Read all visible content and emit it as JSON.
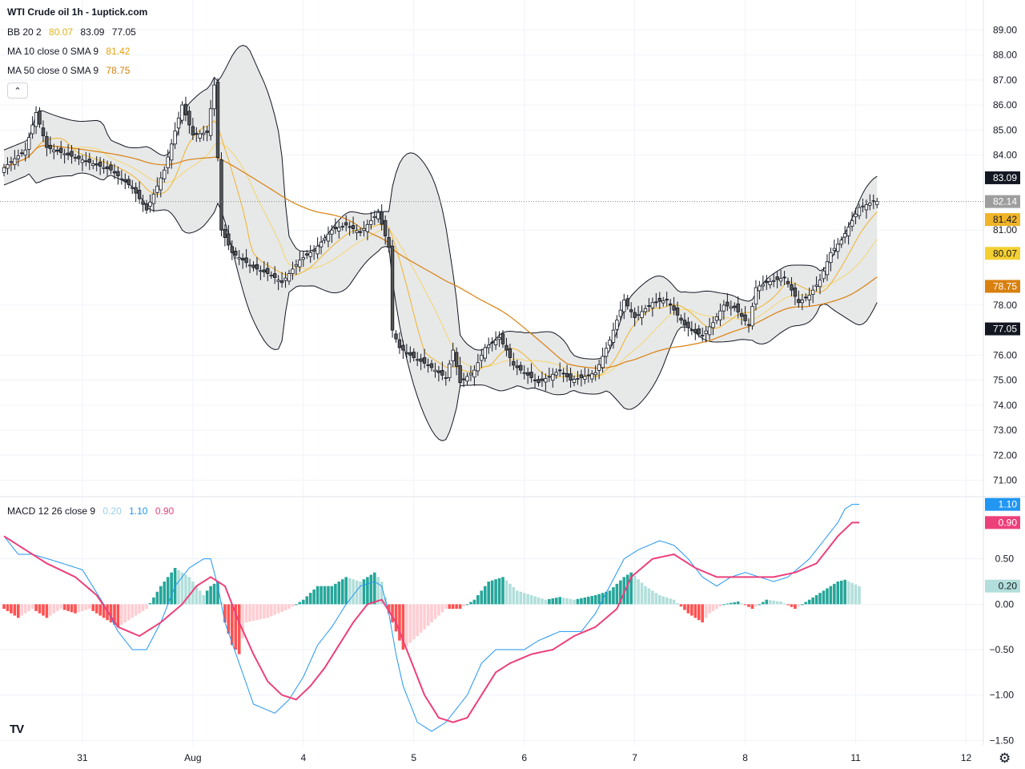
{
  "header": {
    "title": "WTI Crude oil  1h - 1uptick.com"
  },
  "legends": {
    "bb": {
      "label": "BB 20 2",
      "basis": "80.07",
      "upper": "83.09",
      "lower": "77.05"
    },
    "ma10": {
      "label": "MA 10 close 0 SMA 9",
      "value": "81.42"
    },
    "ma50": {
      "label": "MA 50 close 0 SMA 9",
      "value": "78.75"
    },
    "macd": {
      "label": "MACD 12 26 close 9",
      "hist": "0.20",
      "macd": "1.10",
      "signal": "0.90"
    }
  },
  "controls": {
    "collapse": "⌃",
    "logo": "TV",
    "settings": "⚙"
  },
  "colors": {
    "up": "#ffffff",
    "down": "#555555",
    "wick": "#131722",
    "bb_fill": "#e7e8e8",
    "bb_line": "#131722",
    "ma10": "#f0b429",
    "ma50": "#d9800f",
    "bb_basis": "#f5d76e",
    "macd": "#2196f3",
    "signal": "#ec407a",
    "hist_up_strong": "#26a69a",
    "hist_up_weak": "#b2dfdb",
    "hist_dn_strong": "#ff5252",
    "hist_dn_weak": "#ffcdd2",
    "last": "#9e9e9e"
  },
  "chart_data": [
    {
      "type": "candlestick",
      "title": "WTI Crude oil  1h - 1uptick.com",
      "y_ticks": [
        "89.00",
        "88.00",
        "87.00",
        "86.00",
        "85.00",
        "84.00",
        "81.00",
        "78.00",
        "76.00",
        "75.00",
        "74.00",
        "73.00",
        "72.00",
        "71.00"
      ],
      "ylim": [
        70.6,
        89.3
      ],
      "x_ticks": [
        {
          "label": "31",
          "i": 22
        },
        {
          "label": "Aug",
          "i": 53
        },
        {
          "label": "4",
          "i": 84
        },
        {
          "label": "5",
          "i": 115
        },
        {
          "label": "6",
          "i": 146
        },
        {
          "label": "7",
          "i": 177
        },
        {
          "label": "8",
          "i": 208
        },
        {
          "label": "11",
          "i": 239
        },
        {
          "label": "12",
          "i": 270
        }
      ],
      "candle_count": 246,
      "price_keys": [
        [
          0,
          83.5
        ],
        [
          6,
          84.2
        ],
        [
          9,
          85.7
        ],
        [
          12,
          84.3
        ],
        [
          22,
          83.8
        ],
        [
          30,
          83.4
        ],
        [
          36,
          82.7
        ],
        [
          40,
          81.8
        ],
        [
          45,
          83.4
        ],
        [
          50,
          86.0
        ],
        [
          53,
          84.8
        ],
        [
          57,
          84.9
        ],
        [
          59,
          86.8
        ],
        [
          61,
          81.0
        ],
        [
          64,
          80.1
        ],
        [
          70,
          79.5
        ],
        [
          75,
          79.2
        ],
        [
          78,
          78.9
        ],
        [
          83,
          79.8
        ],
        [
          87,
          80.2
        ],
        [
          92,
          81.0
        ],
        [
          96,
          81.2
        ],
        [
          100,
          80.9
        ],
        [
          105,
          81.7
        ],
        [
          108,
          80.3
        ],
        [
          109,
          77.0
        ],
        [
          111,
          76.3
        ],
        [
          115,
          75.9
        ],
        [
          119,
          75.6
        ],
        [
          124,
          75.1
        ],
        [
          126,
          76.2
        ],
        [
          128,
          74.9
        ],
        [
          132,
          75.4
        ],
        [
          135,
          76.3
        ],
        [
          139,
          76.7
        ],
        [
          141,
          76.2
        ],
        [
          143,
          75.6
        ],
        [
          146,
          75.3
        ],
        [
          150,
          74.9
        ],
        [
          156,
          75.4
        ],
        [
          159,
          75.0
        ],
        [
          162,
          75.1
        ],
        [
          166,
          75.3
        ],
        [
          170,
          76.6
        ],
        [
          174,
          78.2
        ],
        [
          177,
          77.5
        ],
        [
          182,
          78.1
        ],
        [
          186,
          78.2
        ],
        [
          189,
          77.6
        ],
        [
          191,
          77.2
        ],
        [
          194,
          76.9
        ],
        [
          196,
          76.8
        ],
        [
          199,
          77.3
        ],
        [
          202,
          78.0
        ],
        [
          205,
          77.9
        ],
        [
          209,
          77.2
        ],
        [
          211,
          78.7
        ],
        [
          214,
          78.9
        ],
        [
          219,
          79.1
        ],
        [
          223,
          78.1
        ],
        [
          226,
          78.4
        ],
        [
          229,
          79.0
        ],
        [
          232,
          80.1
        ],
        [
          235,
          80.6
        ],
        [
          240,
          81.9
        ],
        [
          244,
          82.14
        ]
      ],
      "last_price": "82.14",
      "bb_upper_value": "83.09",
      "ma10_value": "81.42",
      "bb_basis_value": "80.07",
      "ma50_value": "78.75",
      "bb_lower_value": "77.05"
    },
    {
      "type": "macd",
      "y_ticks": [
        "0.50",
        "0.00",
        "−0.50",
        "−1.00",
        "−1.50"
      ],
      "ylim": [
        -1.55,
        1.15
      ],
      "macd_keys": [
        [
          0,
          0.75
        ],
        [
          4,
          0.55
        ],
        [
          8,
          0.55
        ],
        [
          14,
          0.48
        ],
        [
          22,
          0.38
        ],
        [
          28,
          0.0
        ],
        [
          32,
          -0.3
        ],
        [
          36,
          -0.5
        ],
        [
          40,
          -0.5
        ],
        [
          44,
          -0.2
        ],
        [
          48,
          0.2
        ],
        [
          52,
          0.4
        ],
        [
          54,
          0.45
        ],
        [
          56,
          0.5
        ],
        [
          58,
          0.5
        ],
        [
          60,
          0.2
        ],
        [
          62,
          -0.2
        ],
        [
          66,
          -0.65
        ],
        [
          70,
          -1.1
        ],
        [
          76,
          -1.2
        ],
        [
          80,
          -1.05
        ],
        [
          84,
          -0.8
        ],
        [
          88,
          -0.45
        ],
        [
          92,
          -0.25
        ],
        [
          96,
          0.0
        ],
        [
          100,
          0.2
        ],
        [
          104,
          0.25
        ],
        [
          106,
          0.2
        ],
        [
          108,
          -0.1
        ],
        [
          110,
          -0.55
        ],
        [
          112,
          -0.9
        ],
        [
          116,
          -1.3
        ],
        [
          120,
          -1.4
        ],
        [
          124,
          -1.3
        ],
        [
          130,
          -1.0
        ],
        [
          134,
          -0.65
        ],
        [
          138,
          -0.5
        ],
        [
          142,
          -0.5
        ],
        [
          146,
          -0.5
        ],
        [
          150,
          -0.4
        ],
        [
          156,
          -0.3
        ],
        [
          162,
          -0.3
        ],
        [
          166,
          -0.1
        ],
        [
          170,
          0.2
        ],
        [
          174,
          0.5
        ],
        [
          178,
          0.6
        ],
        [
          184,
          0.7
        ],
        [
          188,
          0.65
        ],
        [
          192,
          0.5
        ],
        [
          196,
          0.3
        ],
        [
          200,
          0.2
        ],
        [
          204,
          0.3
        ],
        [
          208,
          0.35
        ],
        [
          212,
          0.3
        ],
        [
          216,
          0.25
        ],
        [
          220,
          0.3
        ],
        [
          226,
          0.5
        ],
        [
          230,
          0.7
        ],
        [
          234,
          0.9
        ],
        [
          236,
          1.05
        ],
        [
          238,
          1.1
        ]
      ],
      "signal_keys": [
        [
          0,
          0.75
        ],
        [
          6,
          0.6
        ],
        [
          12,
          0.45
        ],
        [
          20,
          0.3
        ],
        [
          26,
          0.1
        ],
        [
          32,
          -0.25
        ],
        [
          38,
          -0.35
        ],
        [
          44,
          -0.2
        ],
        [
          50,
          0.0
        ],
        [
          54,
          0.2
        ],
        [
          58,
          0.3
        ],
        [
          62,
          0.2
        ],
        [
          66,
          -0.2
        ],
        [
          70,
          -0.55
        ],
        [
          74,
          -0.85
        ],
        [
          78,
          -1.0
        ],
        [
          82,
          -1.05
        ],
        [
          86,
          -0.9
        ],
        [
          90,
          -0.7
        ],
        [
          94,
          -0.45
        ],
        [
          98,
          -0.2
        ],
        [
          102,
          0.0
        ],
        [
          106,
          0.05
        ],
        [
          110,
          -0.2
        ],
        [
          114,
          -0.6
        ],
        [
          118,
          -1.0
        ],
        [
          122,
          -1.25
        ],
        [
          126,
          -1.3
        ],
        [
          130,
          -1.25
        ],
        [
          134,
          -1.0
        ],
        [
          138,
          -0.75
        ],
        [
          142,
          -0.65
        ],
        [
          148,
          -0.55
        ],
        [
          154,
          -0.5
        ],
        [
          160,
          -0.35
        ],
        [
          166,
          -0.25
        ],
        [
          172,
          -0.05
        ],
        [
          176,
          0.3
        ],
        [
          182,
          0.5
        ],
        [
          188,
          0.55
        ],
        [
          194,
          0.4
        ],
        [
          200,
          0.3
        ],
        [
          206,
          0.3
        ],
        [
          212,
          0.3
        ],
        [
          216,
          0.3
        ],
        [
          222,
          0.35
        ],
        [
          228,
          0.45
        ],
        [
          234,
          0.75
        ],
        [
          238,
          0.9
        ]
      ],
      "hist_keys": [
        [
          0,
          -0.05
        ],
        [
          4,
          -0.15
        ],
        [
          8,
          -0.05
        ],
        [
          12,
          -0.15
        ],
        [
          16,
          -0.05
        ],
        [
          20,
          -0.1
        ],
        [
          24,
          -0.05
        ],
        [
          28,
          -0.15
        ],
        [
          32,
          -0.25
        ],
        [
          36,
          -0.15
        ],
        [
          40,
          -0.05
        ],
        [
          44,
          0.2
        ],
        [
          48,
          0.4
        ],
        [
          52,
          0.3
        ],
        [
          56,
          0.1
        ],
        [
          58,
          0.2
        ],
        [
          60,
          0.25
        ],
        [
          62,
          -0.2
        ],
        [
          64,
          -0.45
        ],
        [
          66,
          -0.55
        ],
        [
          68,
          -0.2
        ],
        [
          74,
          -0.15
        ],
        [
          80,
          -0.05
        ],
        [
          84,
          0.05
        ],
        [
          88,
          0.2
        ],
        [
          92,
          0.2
        ],
        [
          96,
          0.3
        ],
        [
          100,
          0.25
        ],
        [
          104,
          0.35
        ],
        [
          106,
          0.25
        ],
        [
          108,
          -0.1
        ],
        [
          110,
          -0.3
        ],
        [
          112,
          -0.5
        ],
        [
          116,
          -0.35
        ],
        [
          120,
          -0.2
        ],
        [
          124,
          -0.05
        ],
        [
          128,
          -0.05
        ],
        [
          132,
          0.05
        ],
        [
          136,
          0.25
        ],
        [
          140,
          0.3
        ],
        [
          144,
          0.15
        ],
        [
          148,
          0.1
        ],
        [
          152,
          0.05
        ],
        [
          156,
          0.08
        ],
        [
          160,
          0.05
        ],
        [
          166,
          0.1
        ],
        [
          170,
          0.15
        ],
        [
          174,
          0.3
        ],
        [
          176,
          0.35
        ],
        [
          180,
          0.2
        ],
        [
          184,
          0.1
        ],
        [
          188,
          0.05
        ],
        [
          192,
          -0.1
        ],
        [
          196,
          -0.2
        ],
        [
          198,
          -0.1
        ],
        [
          202,
          0.0
        ],
        [
          206,
          0.03
        ],
        [
          210,
          -0.05
        ],
        [
          214,
          0.05
        ],
        [
          218,
          0.03
        ],
        [
          222,
          -0.05
        ],
        [
          226,
          0.05
        ],
        [
          230,
          0.15
        ],
        [
          234,
          0.25
        ],
        [
          236,
          0.27
        ],
        [
          240,
          0.2
        ]
      ]
    }
  ]
}
